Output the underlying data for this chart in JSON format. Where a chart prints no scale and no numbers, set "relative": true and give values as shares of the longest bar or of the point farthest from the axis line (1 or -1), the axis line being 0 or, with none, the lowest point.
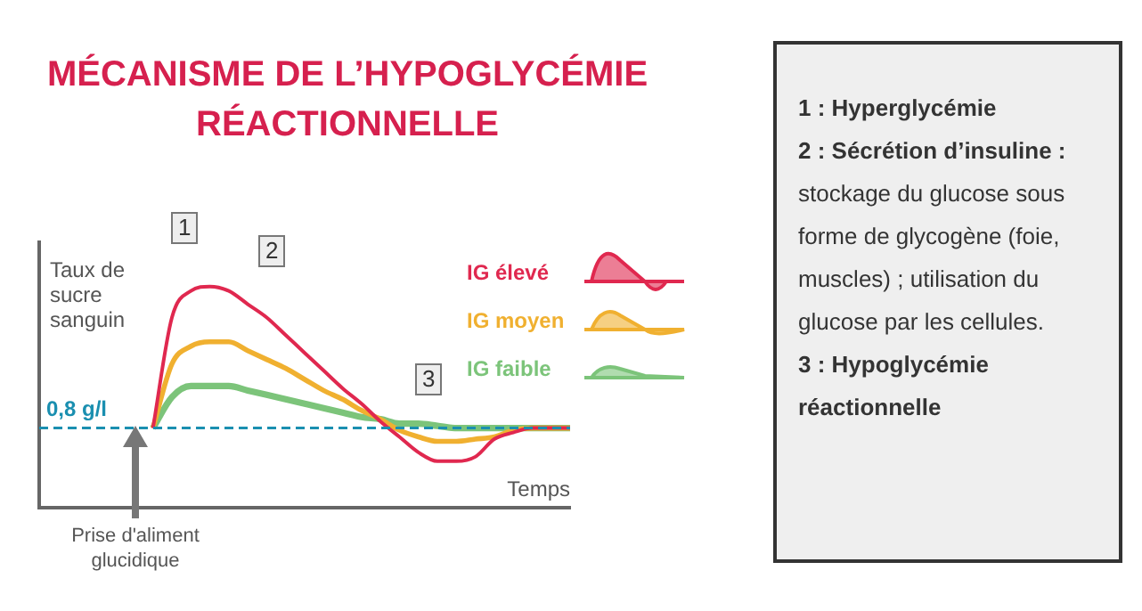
{
  "chart_data": [
    {
      "type": "line",
      "title": "MÉCANISME DE L’HYPOGLYCÉMIE RÉACTIONNELLE",
      "ylabel": "Taux de sucre sanguin",
      "xlabel": "Temps",
      "relative": true,
      "marker": "none",
      "legend": "top right",
      "categories": [
        null,
        null,
        null,
        null,
        null,
        null,
        null,
        null,
        null,
        null,
        null,
        null,
        null,
        null,
        null,
        null,
        null,
        null,
        null,
        null,
        null,
        null,
        null,
        null,
        null,
        null,
        null,
        null,
        null
      ],
      "series": [
        {
          "name": "IG élevé",
          "color": "#e0284f",
          "values": [
            null,
            null,
            null,
            null,
            null,
            null,
            0.36,
            0.86,
            0.98,
            1,
            0.98,
            0.92,
            0.86,
            0.78,
            0.7,
            0.62,
            0.54,
            0.47,
            0.39,
            0.32,
            0.25,
            0.21,
            0.21,
            0.23,
            0.31,
            0.34,
            0.36,
            0.36,
            0.36
          ]
        },
        {
          "name": "IG moyen",
          "color": "#f0b030",
          "values": [
            null,
            null,
            null,
            null,
            null,
            null,
            0.36,
            0.65,
            0.73,
            0.75,
            0.75,
            0.71,
            0.67,
            0.63,
            0.58,
            0.53,
            0.49,
            0.44,
            0.4,
            0.35,
            0.32,
            0.3,
            0.3,
            0.31,
            0.32,
            0.35,
            0.36,
            0.36,
            0.36
          ]
        },
        {
          "name": "IG faible",
          "color": "#7cc47a",
          "values": [
            null,
            null,
            null,
            null,
            null,
            null,
            0.36,
            0.5,
            0.55,
            0.55,
            0.55,
            0.53,
            0.51,
            0.49,
            0.47,
            0.45,
            0.43,
            0.41,
            0.4,
            0.38,
            0.38,
            0.37,
            0.36,
            0.36,
            0.36,
            0.36,
            0.36,
            0.36,
            0.36
          ]
        }
      ],
      "ref_lines": [
        {
          "axis": "y",
          "value": 0.36,
          "label": "0,8 g/l",
          "color": "#1a8fb0",
          "line_style": "dashed"
        }
      ],
      "annotations": [
        "1",
        "2",
        "3",
        "Prise d'aliment glucidique"
      ]
    },
    {
      "type": "other",
      "annotations": [
        "1 : Hyperglycémie",
        "2 : Sécrétion d’insuline :",
        "stockage du glucose sous forme de glycogène (foie, muscles) ; utilisation du glucose par les cellules.",
        "3 : Hypoglycémie réactionnelle"
      ]
    }
  ]
}
